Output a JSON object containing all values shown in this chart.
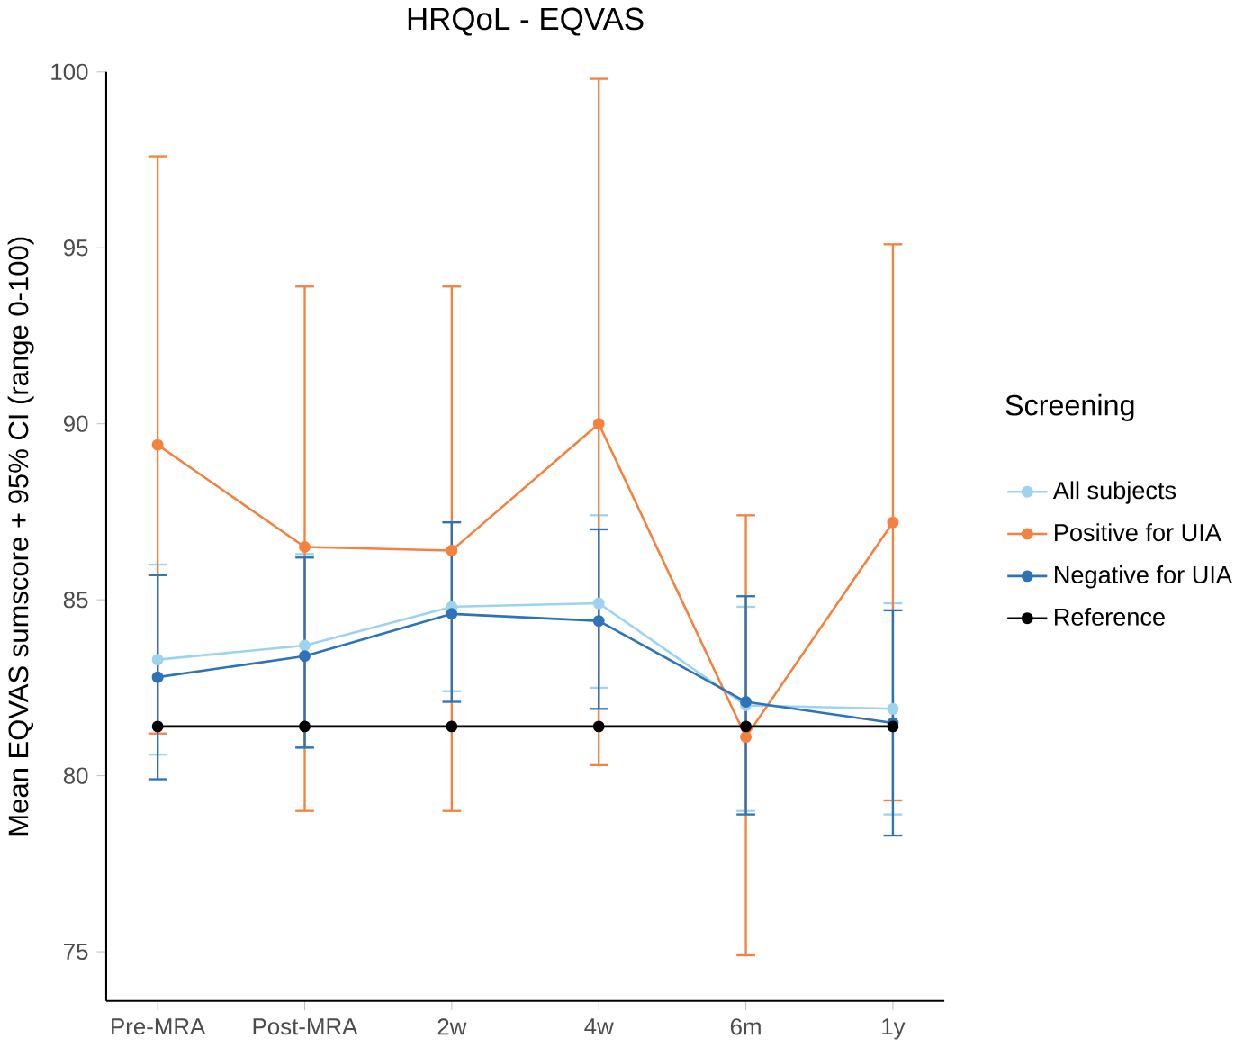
{
  "chart_data": {
    "type": "line",
    "title": "HRQoL - EQVAS",
    "ylabel": "Mean EQVAS sumscore + 95% CI (range 0-100)",
    "legend_title": "Screening",
    "categories": [
      "Pre-MRA",
      "Post-MRA",
      "2w",
      "4w",
      "6m",
      "1y"
    ],
    "ylim": [
      73.6,
      100
    ],
    "yticks": [
      75,
      80,
      85,
      90,
      95,
      100
    ],
    "grid": false,
    "legend": "right",
    "marker": "circle",
    "line_style": "solid",
    "series": [
      {
        "name": "All subjects",
        "color": "#9dd3ef",
        "values": [
          83.3,
          83.7,
          84.8,
          84.9,
          82.0,
          81.9
        ],
        "errors": [
          [
            80.6,
            86.0
          ],
          [
            80.8,
            86.3
          ],
          [
            82.4,
            87.2
          ],
          [
            82.5,
            87.4
          ],
          [
            79.0,
            84.8
          ],
          [
            78.9,
            84.9
          ]
        ]
      },
      {
        "name": "Positive for UIA",
        "color": "#f5813f",
        "values": [
          89.4,
          86.5,
          86.4,
          90.0,
          81.1,
          87.2
        ],
        "errors": [
          [
            81.2,
            97.6
          ],
          [
            79.0,
            93.9
          ],
          [
            79.0,
            93.9
          ],
          [
            80.3,
            99.8
          ],
          [
            74.9,
            87.4
          ],
          [
            79.3,
            95.1
          ]
        ]
      },
      {
        "name": "Negative for UIA",
        "color": "#2e73b8",
        "values": [
          82.8,
          83.4,
          84.6,
          84.4,
          82.1,
          81.5
        ],
        "errors": [
          [
            79.9,
            85.7
          ],
          [
            80.8,
            86.2
          ],
          [
            82.1,
            87.2
          ],
          [
            81.9,
            87.0
          ],
          [
            78.9,
            85.1
          ],
          [
            78.3,
            84.7
          ]
        ]
      },
      {
        "name": "Reference",
        "color": "#000000",
        "values": [
          81.4,
          81.4,
          81.4,
          81.4,
          81.4,
          81.4
        ]
      }
    ]
  }
}
